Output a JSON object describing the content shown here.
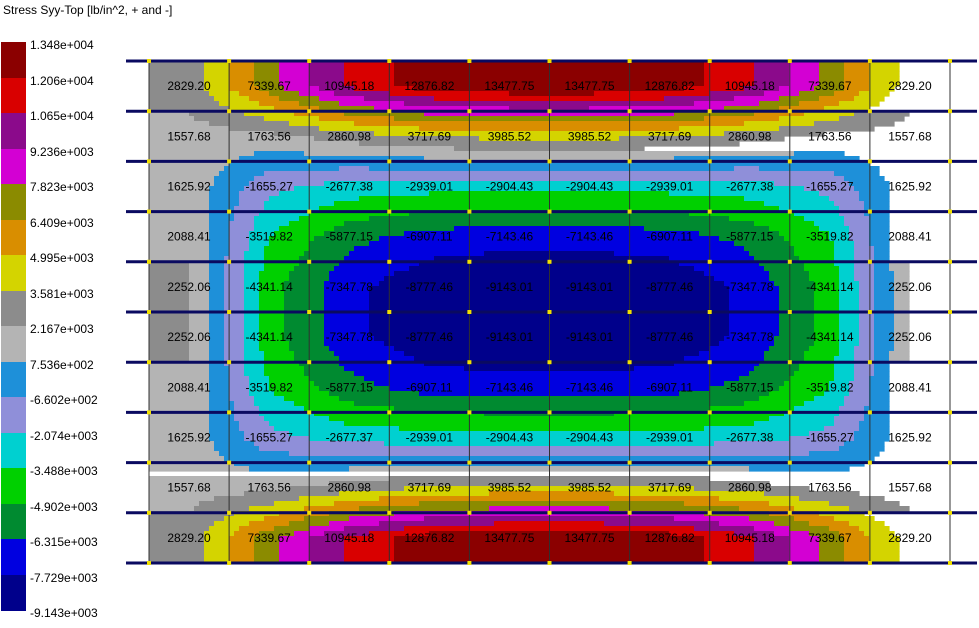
{
  "title": "Stress Syy-Top [lb/in^2, + and -]",
  "legend": {
    "levels": [
      {
        "label": "1.348e+004",
        "color": "#8b0000"
      },
      {
        "label": "1.206e+004",
        "color": "#d90000"
      },
      {
        "label": "1.065e+004",
        "color": "#8b0a8b"
      },
      {
        "label": "9.236e+003",
        "color": "#d300d3"
      },
      {
        "label": "7.823e+003",
        "color": "#8b8b00"
      },
      {
        "label": "6.409e+003",
        "color": "#d98e00"
      },
      {
        "label": "4.995e+003",
        "color": "#d4d400"
      },
      {
        "label": "3.581e+003",
        "color": "#8c8c8c"
      },
      {
        "label": "2.167e+003",
        "color": "#b4b4b4"
      },
      {
        "label": "7.536e+002",
        "color": "#1e90d9"
      },
      {
        "label": "-6.602e+002",
        "color": "#8f8fd9"
      },
      {
        "label": "-2.074e+003",
        "color": "#00d0d0"
      },
      {
        "label": "-3.488e+003",
        "color": "#00d000"
      },
      {
        "label": "-4.902e+003",
        "color": "#008a30"
      },
      {
        "label": "-6.315e+003",
        "color": "#0000e0"
      },
      {
        "label": "-7.729e+003",
        "color": "#00008b"
      },
      {
        "label": "-9.143e+003",
        "color": ""
      }
    ]
  },
  "chart_data": {
    "type": "heatmap",
    "title": "Stress Syy-Top [lb/in^2, + and -]",
    "colorbar_ticks": [
      13480,
      12060,
      10650,
      9236,
      7823,
      6409,
      4995,
      3581,
      2167,
      753.6,
      -660.2,
      -2074,
      -3488,
      -4902,
      -6315,
      -7729,
      -9143
    ],
    "rows": [
      [
        "2829.20",
        "7339.67",
        "10945.18",
        "12876.82",
        "13477.75",
        "13477.75",
        "12876.82",
        "10945.18",
        "7339.67",
        "2829.20"
      ],
      [
        "1557.68",
        "1763.56",
        "2860.98",
        "3717.69",
        "3985.52",
        "3985.52",
        "3717.69",
        "2860.98",
        "1763.56",
        "1557.68"
      ],
      [
        "1625.92",
        "-1655.27",
        "-2677.38",
        "-2939.01",
        "-2904.43",
        "-2904.43",
        "-2939.01",
        "-2677.38",
        "-1655.27",
        "1625.92"
      ],
      [
        "2088.41",
        "-3519.82",
        "-5877.15",
        "-6907.11",
        "-7143.46",
        "-7143.46",
        "-6907.11",
        "-5877.15",
        "-3519.82",
        "2088.41"
      ],
      [
        "2252.06",
        "-4341.14",
        "-7347.78",
        "-8777.46",
        "-9143.01",
        "-9143.01",
        "-8777.46",
        "-7347.78",
        "-4341.14",
        "2252.06"
      ],
      [
        "2252.06",
        "-4341.14",
        "-7347.78",
        "-8777.46",
        "-9143.01",
        "-9143.01",
        "-8777.46",
        "-7347.78",
        "-4341.14",
        "2252.06"
      ],
      [
        "2088.41",
        "-3519.82",
        "-5877.15",
        "-6907.11",
        "-7143.46",
        "-7143.46",
        "-6907.11",
        "-5877.15",
        "-3519.82",
        "2088.41"
      ],
      [
        "1625.92",
        "-1655.27",
        "-2677.37",
        "-2939.01",
        "-2904.43",
        "-2904.43",
        "-2939.01",
        "-2677.38",
        "-1655.27",
        "1625.92"
      ],
      [
        "1557.68",
        "1763.56",
        "2860.98",
        "3717.69",
        "3985.52",
        "3985.52",
        "3717.69",
        "2860.98",
        "1763.56",
        "1557.68"
      ],
      [
        "2829.20",
        "7339.67",
        "10945.18",
        "12876.82",
        "13477.75",
        "13477.75",
        "12876.82",
        "10945.18",
        "7339.67",
        "2829.20"
      ]
    ]
  }
}
